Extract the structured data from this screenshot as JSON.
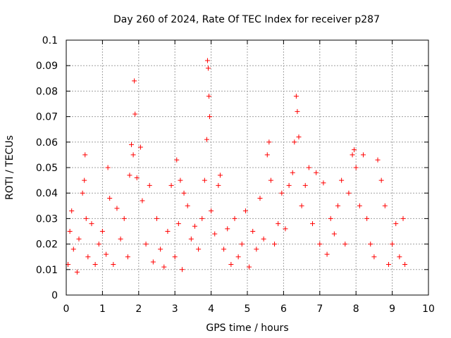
{
  "chart_data": {
    "type": "scatter",
    "title": "Day 260 of 2024, Rate Of TEC Index for receiver p287",
    "xlabel": "GPS time / hours",
    "ylabel": "ROTI / TECUs",
    "xlim": [
      0,
      10
    ],
    "ylim": [
      0,
      0.1
    ],
    "x_ticks": [
      "0",
      "1",
      "2",
      "3",
      "4",
      "5",
      "6",
      "7",
      "8",
      "9",
      "10"
    ],
    "y_ticks": [
      "0",
      "0.01",
      "0.02",
      "0.03",
      "0.04",
      "0.05",
      "0.06",
      "0.07",
      "0.08",
      "0.09",
      "0.1"
    ],
    "grid": true,
    "marker": "+",
    "color": "#ff0000",
    "series": [
      {
        "name": "ROTI",
        "points": [
          [
            0.05,
            0.012
          ],
          [
            0.1,
            0.025
          ],
          [
            0.15,
            0.033
          ],
          [
            0.2,
            0.018
          ],
          [
            0.3,
            0.009
          ],
          [
            0.35,
            0.022
          ],
          [
            0.45,
            0.04
          ],
          [
            0.5,
            0.045
          ],
          [
            0.52,
            0.055
          ],
          [
            0.55,
            0.03
          ],
          [
            0.6,
            0.015
          ],
          [
            0.7,
            0.028
          ],
          [
            0.8,
            0.012
          ],
          [
            0.9,
            0.02
          ],
          [
            1.0,
            0.025
          ],
          [
            1.1,
            0.016
          ],
          [
            1.15,
            0.05
          ],
          [
            1.2,
            0.038
          ],
          [
            1.3,
            0.012
          ],
          [
            1.4,
            0.034
          ],
          [
            1.5,
            0.022
          ],
          [
            1.6,
            0.03
          ],
          [
            1.7,
            0.015
          ],
          [
            1.75,
            0.047
          ],
          [
            1.8,
            0.059
          ],
          [
            1.85,
            0.055
          ],
          [
            1.88,
            0.084
          ],
          [
            1.9,
            0.071
          ],
          [
            1.95,
            0.046
          ],
          [
            2.05,
            0.058
          ],
          [
            2.1,
            0.037
          ],
          [
            2.2,
            0.02
          ],
          [
            2.3,
            0.043
          ],
          [
            2.4,
            0.013
          ],
          [
            2.5,
            0.03
          ],
          [
            2.6,
            0.018
          ],
          [
            2.7,
            0.011
          ],
          [
            2.8,
            0.025
          ],
          [
            2.9,
            0.043
          ],
          [
            3.0,
            0.015
          ],
          [
            3.05,
            0.053
          ],
          [
            3.1,
            0.028
          ],
          [
            3.15,
            0.045
          ],
          [
            3.2,
            0.01
          ],
          [
            3.25,
            0.04
          ],
          [
            3.35,
            0.035
          ],
          [
            3.45,
            0.022
          ],
          [
            3.55,
            0.027
          ],
          [
            3.65,
            0.018
          ],
          [
            3.75,
            0.03
          ],
          [
            3.82,
            0.045
          ],
          [
            3.88,
            0.061
          ],
          [
            3.9,
            0.092
          ],
          [
            3.92,
            0.089
          ],
          [
            3.94,
            0.078
          ],
          [
            3.96,
            0.07
          ],
          [
            4.0,
            0.033
          ],
          [
            4.1,
            0.024
          ],
          [
            4.2,
            0.043
          ],
          [
            4.25,
            0.047
          ],
          [
            4.35,
            0.018
          ],
          [
            4.45,
            0.026
          ],
          [
            4.55,
            0.012
          ],
          [
            4.65,
            0.03
          ],
          [
            4.75,
            0.015
          ],
          [
            4.85,
            0.02
          ],
          [
            4.95,
            0.033
          ],
          [
            5.05,
            0.011
          ],
          [
            5.15,
            0.025
          ],
          [
            5.25,
            0.018
          ],
          [
            5.35,
            0.038
          ],
          [
            5.45,
            0.022
          ],
          [
            5.55,
            0.055
          ],
          [
            5.6,
            0.06
          ],
          [
            5.65,
            0.045
          ],
          [
            5.75,
            0.02
          ],
          [
            5.85,
            0.028
          ],
          [
            5.95,
            0.04
          ],
          [
            6.05,
            0.026
          ],
          [
            6.15,
            0.043
          ],
          [
            6.25,
            0.048
          ],
          [
            6.3,
            0.06
          ],
          [
            6.35,
            0.078
          ],
          [
            6.38,
            0.072
          ],
          [
            6.42,
            0.062
          ],
          [
            6.5,
            0.035
          ],
          [
            6.6,
            0.043
          ],
          [
            6.7,
            0.05
          ],
          [
            6.8,
            0.028
          ],
          [
            6.9,
            0.048
          ],
          [
            7.0,
            0.02
          ],
          [
            7.1,
            0.044
          ],
          [
            7.2,
            0.016
          ],
          [
            7.3,
            0.03
          ],
          [
            7.4,
            0.024
          ],
          [
            7.5,
            0.035
          ],
          [
            7.6,
            0.045
          ],
          [
            7.7,
            0.02
          ],
          [
            7.8,
            0.04
          ],
          [
            7.9,
            0.055
          ],
          [
            7.95,
            0.057
          ],
          [
            8.0,
            0.05
          ],
          [
            8.1,
            0.035
          ],
          [
            8.2,
            0.055
          ],
          [
            8.3,
            0.03
          ],
          [
            8.4,
            0.02
          ],
          [
            8.5,
            0.015
          ],
          [
            8.6,
            0.053
          ],
          [
            8.7,
            0.045
          ],
          [
            8.8,
            0.035
          ],
          [
            8.9,
            0.012
          ],
          [
            9.0,
            0.02
          ],
          [
            9.1,
            0.028
          ],
          [
            9.2,
            0.015
          ],
          [
            9.3,
            0.03
          ],
          [
            9.35,
            0.012
          ]
        ]
      }
    ]
  }
}
